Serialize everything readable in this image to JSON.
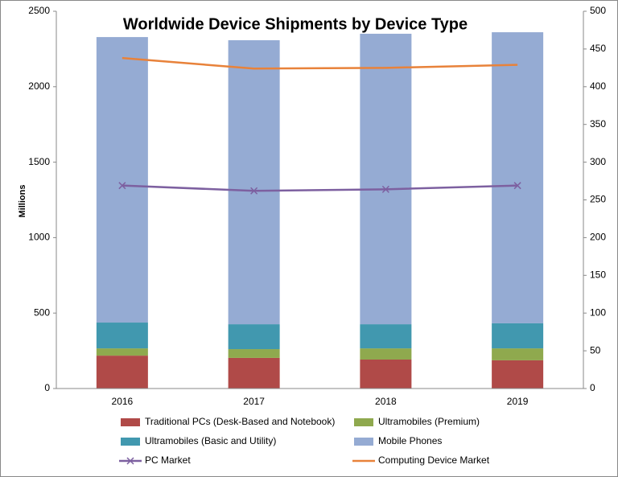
{
  "chart_data": {
    "type": "bar",
    "title": "Worldwide Device Shipments by Device Type",
    "y_label": "Millions",
    "categories": [
      "2016",
      "2017",
      "2018",
      "2019"
    ],
    "stacked": true,
    "ylim": [
      0,
      2500
    ],
    "yticks": [
      0,
      500,
      1000,
      1500,
      2000,
      2500
    ],
    "y2lim": [
      0,
      500
    ],
    "y2ticks": [
      0,
      50,
      100,
      150,
      200,
      250,
      300,
      350,
      400,
      450,
      500
    ],
    "grid": false,
    "legend": "bottom",
    "series": [
      {
        "name": "Traditional PCs (Desk-Based and Notebook)",
        "type": "bar",
        "color": "#b04a48",
        "values": [
          218,
          203,
          192,
          187
        ]
      },
      {
        "name": "Ultramobiles (Premium)",
        "type": "bar",
        "color": "#8fa94e",
        "values": [
          48,
          58,
          74,
          79
        ]
      },
      {
        "name": "Ultramobiles (Basic and Utility)",
        "type": "bar",
        "color": "#4198af",
        "values": [
          171,
          165,
          160,
          166
        ]
      },
      {
        "name": "Mobile Phones",
        "type": "bar",
        "color": "#95abd3",
        "values": [
          1892,
          1882,
          1925,
          1929
        ]
      },
      {
        "name": "PC Market",
        "type": "line",
        "axis": "y2",
        "marker": "x",
        "color": "#7d60a0",
        "values": [
          269,
          262,
          264,
          269
        ]
      },
      {
        "name": "Computing Device Market",
        "type": "line",
        "axis": "y2",
        "color": "#e8823a",
        "values": [
          438,
          424,
          425,
          429
        ]
      }
    ]
  }
}
